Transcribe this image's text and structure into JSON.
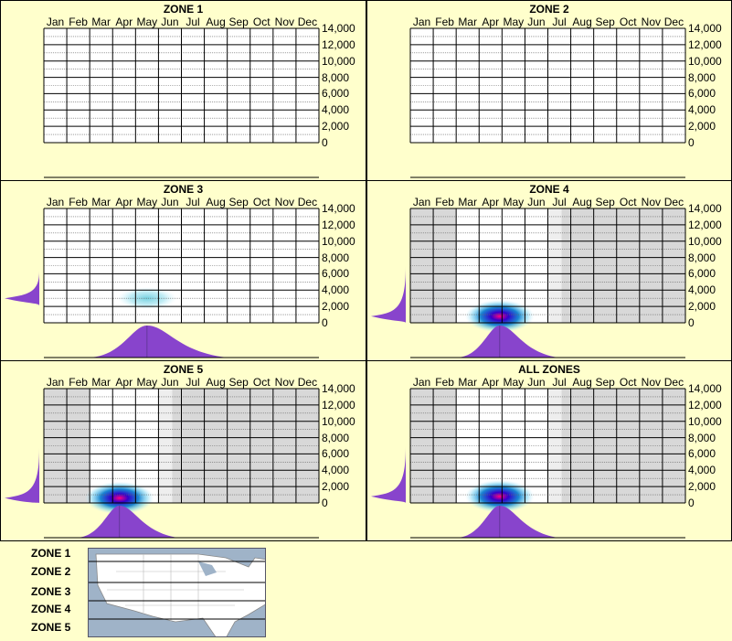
{
  "months": [
    "Jan",
    "Feb",
    "Mar",
    "Apr",
    "May",
    "Jun",
    "Jul",
    "Aug",
    "Sep",
    "Oct",
    "Nov",
    "Dec"
  ],
  "y_ticks": [
    "14,000",
    "12,000",
    "10,000",
    "8,000",
    "6,000",
    "4,000",
    "2,000",
    "0"
  ],
  "colors": {
    "background": "#ffffcc",
    "density": "#8844cc",
    "shade": "#d8d8d8",
    "hot": "#ff0080"
  },
  "chart_data": [
    {
      "type": "heatmap",
      "title": "ZONE 1",
      "ylim": [
        0,
        14000
      ],
      "has_data": false
    },
    {
      "type": "heatmap",
      "title": "ZONE 2",
      "ylim": [
        0,
        14000
      ],
      "has_data": false
    },
    {
      "type": "heatmap",
      "title": "ZONE 3",
      "ylim": [
        0,
        14000
      ],
      "has_data": true,
      "hotspot": {
        "month": 4.5,
        "elevation": 3000,
        "intensity": "low"
      },
      "shaded_months": []
    },
    {
      "type": "heatmap",
      "title": "ZONE 4",
      "ylim": [
        0,
        14000
      ],
      "has_data": true,
      "hotspot": {
        "month": 3.9,
        "elevation": 800,
        "intensity": "high"
      },
      "shaded_months": [
        1,
        2,
        3,
        4,
        5,
        6,
        7,
        8,
        9,
        10,
        11,
        12
      ],
      "light_months": [
        3,
        4,
        5,
        6
      ]
    },
    {
      "type": "heatmap",
      "title": "ZONE 5",
      "ylim": [
        0,
        14000
      ],
      "has_data": true,
      "hotspot": {
        "month": 3.3,
        "elevation": 600,
        "intensity": "high"
      },
      "shaded_months": [
        1,
        2,
        3,
        4,
        5,
        6,
        7,
        8,
        9,
        10,
        11,
        12
      ],
      "light_months": [
        3,
        4,
        5
      ]
    },
    {
      "type": "heatmap",
      "title": "ALL ZONES",
      "ylim": [
        0,
        14000
      ],
      "has_data": true,
      "hotspot": {
        "month": 3.9,
        "elevation": 800,
        "intensity": "high"
      },
      "shaded_months": [
        1,
        2,
        3,
        4,
        5,
        6,
        7,
        8,
        9,
        10,
        11,
        12
      ],
      "light_months": [
        3,
        4,
        5,
        6
      ]
    }
  ],
  "legend": {
    "zones": [
      "ZONE 1",
      "ZONE 2",
      "ZONE 3",
      "ZONE 4",
      "ZONE 5"
    ]
  }
}
